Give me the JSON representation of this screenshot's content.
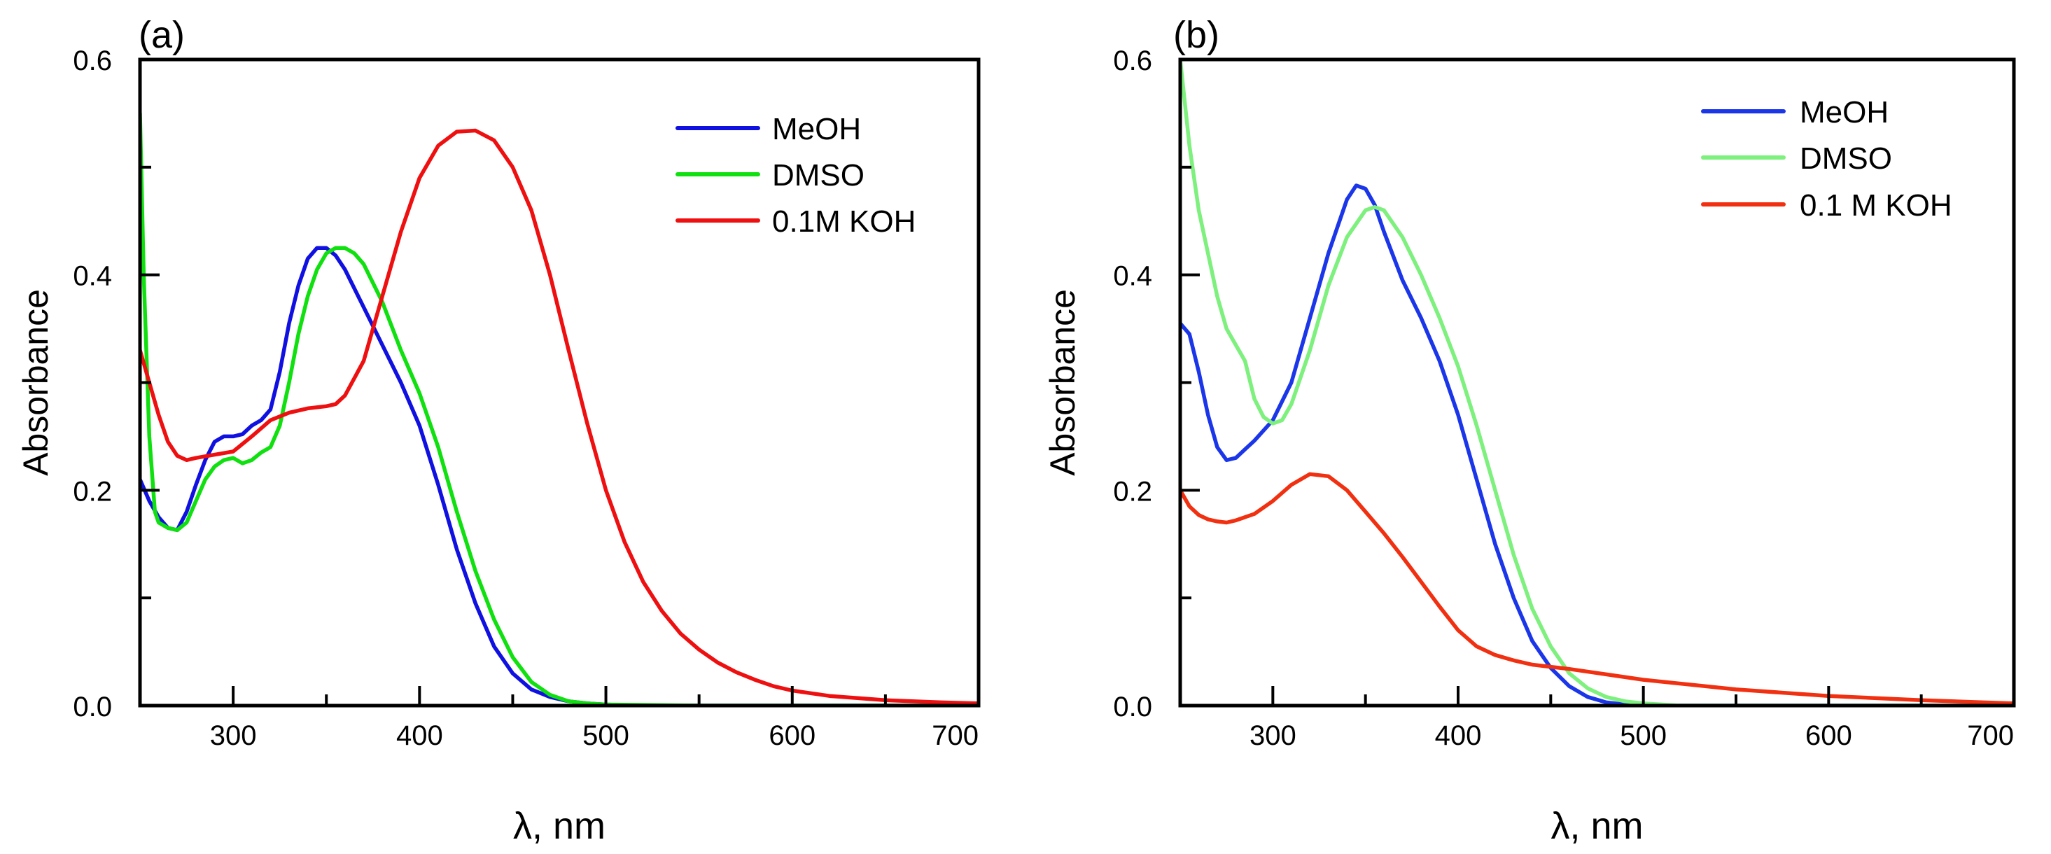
{
  "chart_data": [
    {
      "type": "line",
      "panel_label": "(a)",
      "xlabel": "λ, nm",
      "ylabel": "Absorbance",
      "xlim": [
        250,
        700
      ],
      "ylim": [
        0,
        0.6
      ],
      "x_ticks": [
        300,
        400,
        500,
        600,
        700
      ],
      "y_ticks": [
        0.0,
        0.2,
        0.4,
        0.6
      ],
      "y_tick_labels": [
        "0.0",
        "0.2",
        "0.4",
        "0.6"
      ],
      "legend_position": "top-right",
      "series": [
        {
          "name": "MeOH",
          "color": "#1010e0",
          "x": [
            250,
            255,
            260,
            265,
            270,
            275,
            280,
            285,
            290,
            295,
            300,
            305,
            310,
            315,
            320,
            325,
            330,
            335,
            340,
            345,
            350,
            355,
            360,
            370,
            380,
            390,
            400,
            410,
            420,
            430,
            440,
            450,
            460,
            470,
            480,
            490,
            500,
            520,
            550,
            600,
            650,
            700
          ],
          "y": [
            0.21,
            0.19,
            0.175,
            0.165,
            0.163,
            0.18,
            0.205,
            0.228,
            0.245,
            0.25,
            0.25,
            0.252,
            0.26,
            0.265,
            0.275,
            0.31,
            0.355,
            0.39,
            0.415,
            0.425,
            0.425,
            0.418,
            0.405,
            0.37,
            0.335,
            0.3,
            0.26,
            0.205,
            0.145,
            0.095,
            0.055,
            0.03,
            0.015,
            0.008,
            0.004,
            0.002,
            0.001,
            0.0,
            0.0,
            0.0,
            0.0,
            0.0
          ]
        },
        {
          "name": "DMSO",
          "color": "#10e010",
          "x": [
            250,
            252,
            255,
            258,
            260,
            265,
            270,
            275,
            280,
            285,
            290,
            295,
            300,
            305,
            310,
            315,
            320,
            325,
            330,
            335,
            340,
            345,
            350,
            355,
            360,
            365,
            370,
            380,
            390,
            400,
            410,
            420,
            430,
            440,
            450,
            460,
            470,
            480,
            490,
            500,
            550,
            600,
            700
          ],
          "y": [
            0.55,
            0.4,
            0.25,
            0.18,
            0.17,
            0.165,
            0.163,
            0.17,
            0.19,
            0.21,
            0.222,
            0.228,
            0.23,
            0.225,
            0.228,
            0.235,
            0.24,
            0.26,
            0.3,
            0.345,
            0.38,
            0.405,
            0.42,
            0.425,
            0.425,
            0.42,
            0.41,
            0.375,
            0.33,
            0.29,
            0.24,
            0.18,
            0.125,
            0.08,
            0.045,
            0.022,
            0.01,
            0.004,
            0.002,
            0.001,
            0.0,
            0.0,
            0.0
          ]
        },
        {
          "name": "0.1M KOH",
          "color": "#ee1010",
          "x": [
            250,
            255,
            260,
            265,
            270,
            275,
            280,
            290,
            300,
            310,
            320,
            330,
            340,
            350,
            355,
            360,
            370,
            380,
            390,
            400,
            410,
            420,
            430,
            440,
            450,
            460,
            470,
            480,
            490,
            500,
            510,
            520,
            530,
            540,
            550,
            560,
            570,
            580,
            590,
            600,
            620,
            650,
            680,
            700
          ],
          "y": [
            0.33,
            0.3,
            0.27,
            0.245,
            0.232,
            0.228,
            0.23,
            0.233,
            0.236,
            0.25,
            0.265,
            0.272,
            0.276,
            0.278,
            0.28,
            0.288,
            0.32,
            0.38,
            0.44,
            0.49,
            0.52,
            0.533,
            0.534,
            0.525,
            0.5,
            0.46,
            0.4,
            0.33,
            0.262,
            0.2,
            0.152,
            0.115,
            0.088,
            0.067,
            0.052,
            0.04,
            0.031,
            0.024,
            0.018,
            0.014,
            0.009,
            0.005,
            0.003,
            0.002
          ]
        }
      ]
    },
    {
      "type": "line",
      "panel_label": "(b)",
      "xlabel": "λ, nm",
      "ylabel": "Absorbance",
      "xlim": [
        250,
        700
      ],
      "ylim": [
        0,
        0.6
      ],
      "x_ticks": [
        300,
        400,
        500,
        600,
        700
      ],
      "y_ticks": [
        0.0,
        0.2,
        0.4,
        0.6
      ],
      "y_tick_labels": [
        "0.0",
        "0.2",
        "0.4",
        "0.6"
      ],
      "legend_position": "top-right",
      "series": [
        {
          "name": "MeOH",
          "color": "#1a36e8",
          "x": [
            250,
            255,
            260,
            265,
            270,
            275,
            280,
            285,
            290,
            300,
            310,
            320,
            330,
            340,
            345,
            350,
            355,
            360,
            370,
            380,
            390,
            400,
            410,
            420,
            430,
            440,
            450,
            460,
            470,
            480,
            490,
            500,
            550,
            600,
            700
          ],
          "y": [
            0.355,
            0.345,
            0.31,
            0.27,
            0.24,
            0.228,
            0.23,
            0.238,
            0.246,
            0.265,
            0.3,
            0.36,
            0.42,
            0.47,
            0.483,
            0.48,
            0.465,
            0.44,
            0.395,
            0.36,
            0.32,
            0.27,
            0.21,
            0.15,
            0.1,
            0.06,
            0.035,
            0.018,
            0.008,
            0.003,
            0.001,
            0.0,
            0.0,
            0.0,
            0.0
          ]
        },
        {
          "name": "DMSO",
          "color": "#7ef07e",
          "x": [
            250,
            255,
            260,
            265,
            270,
            275,
            280,
            285,
            290,
            295,
            300,
            305,
            310,
            320,
            330,
            340,
            350,
            355,
            360,
            370,
            380,
            390,
            400,
            410,
            420,
            430,
            440,
            450,
            460,
            470,
            480,
            490,
            500,
            520,
            550,
            600,
            700
          ],
          "y": [
            0.6,
            0.52,
            0.46,
            0.42,
            0.38,
            0.35,
            0.335,
            0.32,
            0.285,
            0.268,
            0.262,
            0.265,
            0.28,
            0.33,
            0.39,
            0.435,
            0.46,
            0.463,
            0.46,
            0.435,
            0.4,
            0.36,
            0.315,
            0.26,
            0.2,
            0.14,
            0.09,
            0.055,
            0.03,
            0.016,
            0.008,
            0.004,
            0.002,
            0.0,
            0.0,
            0.0,
            0.0
          ]
        },
        {
          "name": "0.1 M KOH",
          "color": "#f03010",
          "x": [
            250,
            255,
            260,
            265,
            270,
            275,
            280,
            290,
            300,
            310,
            320,
            330,
            340,
            350,
            360,
            370,
            380,
            390,
            400,
            410,
            420,
            430,
            440,
            450,
            460,
            480,
            500,
            550,
            600,
            650,
            700
          ],
          "y": [
            0.2,
            0.185,
            0.177,
            0.173,
            0.171,
            0.17,
            0.172,
            0.178,
            0.19,
            0.205,
            0.215,
            0.213,
            0.2,
            0.18,
            0.16,
            0.138,
            0.115,
            0.092,
            0.07,
            0.055,
            0.047,
            0.042,
            0.038,
            0.036,
            0.034,
            0.029,
            0.024,
            0.015,
            0.009,
            0.005,
            0.002
          ]
        }
      ]
    }
  ]
}
